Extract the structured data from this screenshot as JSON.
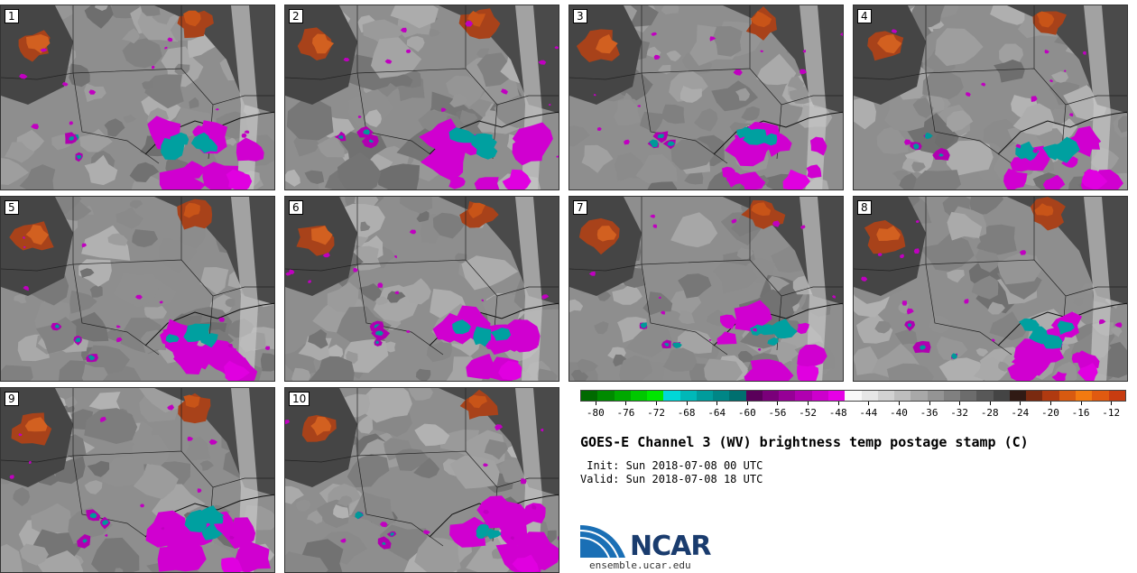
{
  "panels": [
    {
      "label": "1",
      "seed": 3
    },
    {
      "label": "2",
      "seed": 11
    },
    {
      "label": "3",
      "seed": 19
    },
    {
      "label": "4",
      "seed": 27
    },
    {
      "label": "5",
      "seed": 35
    },
    {
      "label": "6",
      "seed": 43
    },
    {
      "label": "7",
      "seed": 51
    },
    {
      "label": "8",
      "seed": 59
    },
    {
      "label": "9",
      "seed": 67
    },
    {
      "label": "10",
      "seed": 75
    }
  ],
  "colorbar": {
    "colors": [
      "#006a00",
      "#008a00",
      "#00a800",
      "#00c800",
      "#00e600",
      "#00d8d8",
      "#00b8b8",
      "#009c9c",
      "#008686",
      "#006f6f",
      "#5a005a",
      "#7a007a",
      "#960096",
      "#b000b0",
      "#cc00cc",
      "#e600e6",
      "#f8f8f8",
      "#e6e6e6",
      "#d2d2d2",
      "#bebebe",
      "#a8a8a8",
      "#949494",
      "#808080",
      "#6c6c6c",
      "#585858",
      "#444444",
      "#301a14",
      "#7a2a10",
      "#b03a10",
      "#d85a10",
      "#f27a10",
      "#e05a10",
      "#c83c10"
    ],
    "tick_labels": [
      "-80",
      "-76",
      "-72",
      "-68",
      "-64",
      "-60",
      "-56",
      "-52",
      "-48",
      "-44",
      "-40",
      "-36",
      "-32",
      "-28",
      "-24",
      "-20",
      "-16",
      "-12"
    ],
    "min": -82,
    "max": -10
  },
  "title": "GOES-E Channel 3 (WV) brightness temp postage stamp (C)",
  "init": " Init: Sun 2018-07-08 00 UTC",
  "valid": "Valid: Sun 2018-07-08 18 UTC",
  "logo_text": "NCAR",
  "site": "ensemble.ucar.edu"
}
